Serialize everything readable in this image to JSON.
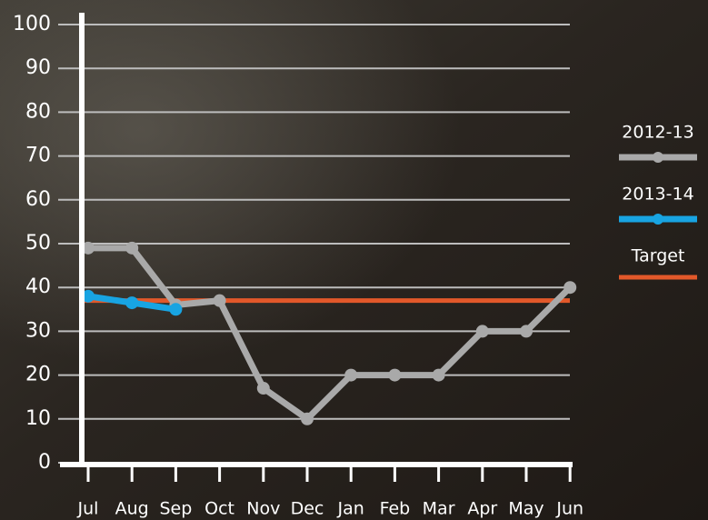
{
  "chart_data": {
    "type": "line",
    "categories": [
      "Jul",
      "Aug",
      "Sep",
      "Oct",
      "Nov",
      "Dec",
      "Jan",
      "Feb",
      "Mar",
      "Apr",
      "May",
      "Jun"
    ],
    "series": [
      {
        "name": "2012-13",
        "color": "#a9a9a9",
        "values": [
          49,
          49,
          36,
          37,
          17,
          10,
          20,
          20,
          20,
          30,
          30,
          40
        ]
      },
      {
        "name": "2013-14",
        "color": "#18a4e2",
        "values": [
          38,
          36.5,
          35,
          null,
          null,
          null,
          null,
          null,
          null,
          null,
          null,
          null
        ]
      }
    ],
    "target": {
      "name": "Target",
      "color": "#e2582a",
      "value": 37
    },
    "ylim": [
      0,
      100
    ],
    "yticks": [
      0,
      10,
      20,
      30,
      40,
      50,
      60,
      70,
      80,
      90,
      100
    ],
    "grid": true
  }
}
